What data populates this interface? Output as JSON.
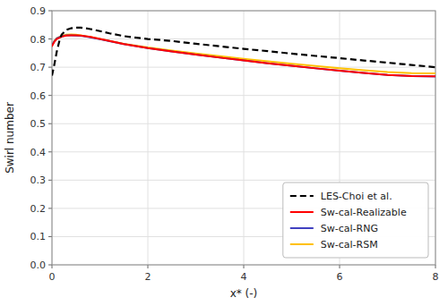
{
  "chart_data": {
    "type": "line",
    "x_label": "x* (-)",
    "y_label": "Swirl number",
    "xlim": [
      0,
      8
    ],
    "ylim": [
      0,
      0.9
    ],
    "xticks": [
      0,
      2,
      4,
      6,
      8
    ],
    "yticks": [
      {
        "value": 0,
        "label": "0.0"
      },
      0.1,
      0.2,
      0.3,
      0.4,
      0.5,
      0.6,
      0.7,
      0.8,
      0.9
    ],
    "grid": true,
    "legend": "lower right",
    "series": [
      {
        "name": "LES-Choi et al.",
        "color": "#000000",
        "line_style": "dashed",
        "x": [
          0.0,
          0.05,
          0.1,
          0.15,
          0.2,
          0.3,
          0.4,
          0.5,
          0.6,
          0.7,
          0.8,
          1.0,
          1.2,
          1.5,
          2.0,
          2.5,
          3.0,
          3.5,
          4.0,
          4.5,
          5.0,
          5.5,
          6.0,
          6.5,
          7.0,
          7.5,
          8.0
        ],
        "values": [
          0.67,
          0.71,
          0.755,
          0.79,
          0.815,
          0.832,
          0.838,
          0.84,
          0.84,
          0.838,
          0.835,
          0.828,
          0.82,
          0.81,
          0.8,
          0.793,
          0.783,
          0.774,
          0.765,
          0.757,
          0.748,
          0.74,
          0.732,
          0.724,
          0.716,
          0.708,
          0.7
        ]
      },
      {
        "name": "Sw-cal-Realizable",
        "color": "#ff0000",
        "line_style": "solid",
        "x": [
          0.0,
          0.05,
          0.1,
          0.2,
          0.3,
          0.4,
          0.5,
          0.6,
          0.7,
          0.8,
          1.0,
          1.2,
          1.5,
          2.0,
          2.5,
          3.0,
          3.5,
          4.0,
          4.5,
          5.0,
          5.5,
          6.0,
          6.5,
          7.0,
          7.5,
          8.0
        ],
        "values": [
          0.775,
          0.79,
          0.8,
          0.808,
          0.812,
          0.813,
          0.813,
          0.812,
          0.81,
          0.807,
          0.8,
          0.793,
          0.782,
          0.768,
          0.756,
          0.745,
          0.734,
          0.724,
          0.714,
          0.705,
          0.696,
          0.688,
          0.68,
          0.673,
          0.669,
          0.668
        ]
      },
      {
        "name": "Sw-cal-RNG",
        "color": "#4040c0",
        "line_style": "solid",
        "x": [
          0.0,
          0.05,
          0.1,
          0.2,
          0.3,
          0.4,
          0.5,
          0.6,
          0.7,
          0.8,
          1.0,
          1.2,
          1.5,
          2.0,
          2.5,
          3.0,
          3.5,
          4.0,
          4.5,
          5.0,
          5.5,
          6.0,
          6.5,
          7.0,
          7.5,
          8.0
        ],
        "values": [
          0.778,
          0.792,
          0.802,
          0.81,
          0.813,
          0.813,
          0.812,
          0.811,
          0.809,
          0.806,
          0.799,
          0.792,
          0.782,
          0.768,
          0.756,
          0.745,
          0.734,
          0.724,
          0.714,
          0.705,
          0.696,
          0.688,
          0.68,
          0.673,
          0.669,
          0.667
        ]
      },
      {
        "name": "Sw-cal-RSM",
        "color": "#ffc000",
        "line_style": "solid",
        "x": [
          0.0,
          0.05,
          0.1,
          0.2,
          0.3,
          0.4,
          0.5,
          0.6,
          0.7,
          0.8,
          1.0,
          1.2,
          1.5,
          2.0,
          2.5,
          3.0,
          3.5,
          4.0,
          4.5,
          5.0,
          5.5,
          6.0,
          6.5,
          7.0,
          7.5,
          8.0
        ],
        "values": [
          0.777,
          0.793,
          0.803,
          0.811,
          0.815,
          0.816,
          0.815,
          0.813,
          0.81,
          0.807,
          0.8,
          0.793,
          0.783,
          0.77,
          0.759,
          0.749,
          0.739,
          0.73,
          0.721,
          0.712,
          0.704,
          0.696,
          0.689,
          0.683,
          0.679,
          0.678
        ]
      }
    ]
  }
}
